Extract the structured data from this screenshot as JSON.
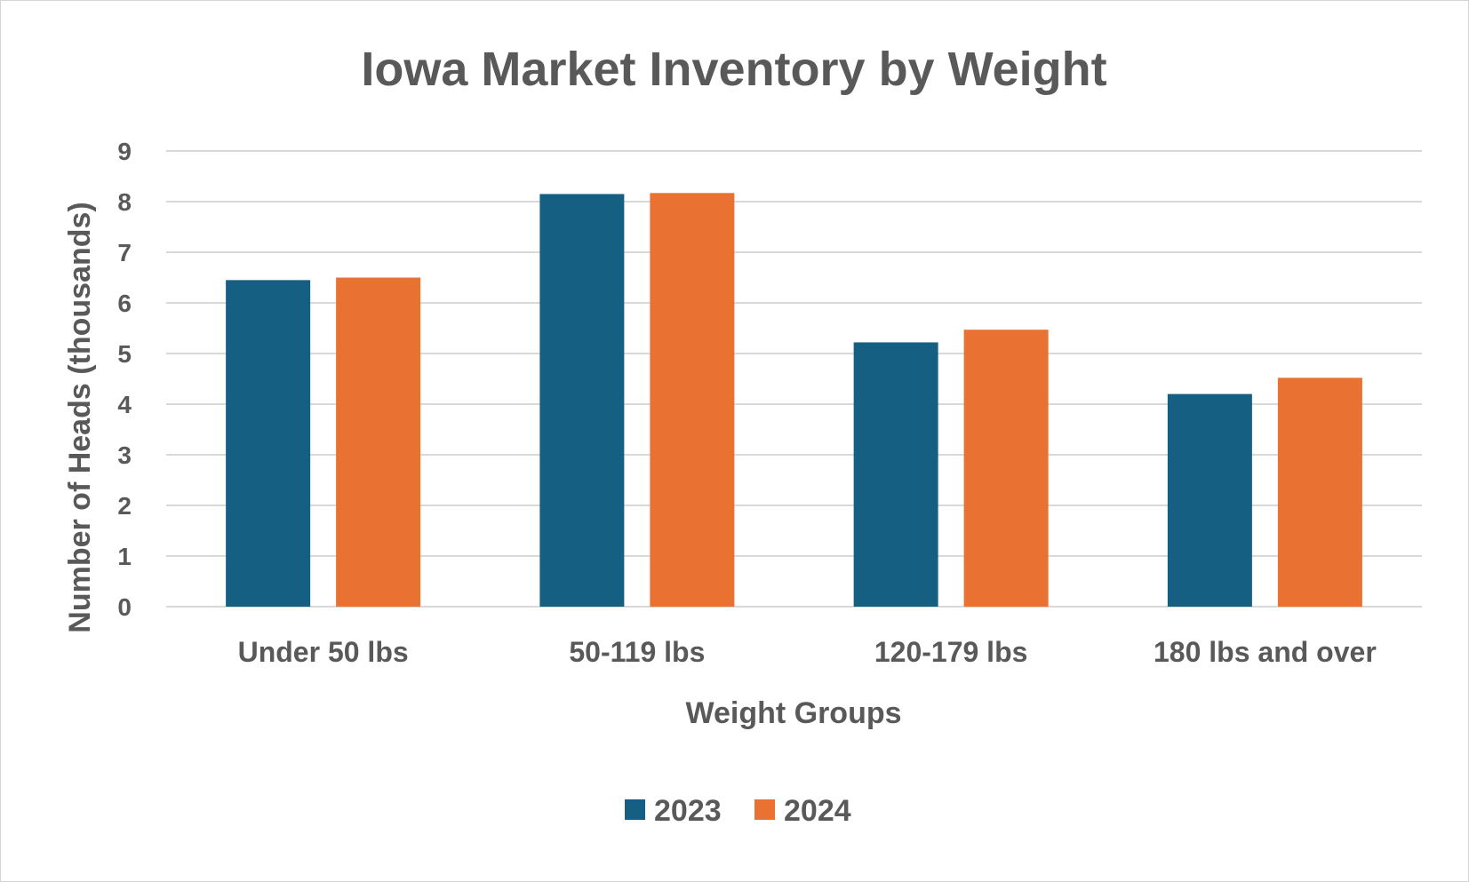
{
  "chart_data": {
    "type": "bar",
    "title": "Iowa Market Inventory by Weight",
    "xlabel": "Weight Groups",
    "ylabel": "Number of Heads (thousands)",
    "ylim": [
      0,
      9
    ],
    "yticks": [
      "0",
      "1",
      "2",
      "3",
      "4",
      "5",
      "6",
      "7",
      "8",
      "9"
    ],
    "grid": true,
    "legend_position": "bottom",
    "categories": [
      "Under 50 lbs",
      "50-119 lbs",
      "120-179 lbs",
      "180 lbs and over"
    ],
    "series": [
      {
        "name": "2023",
        "color": "#156082",
        "values": [
          6.45,
          8.15,
          5.22,
          4.2
        ]
      },
      {
        "name": "2024",
        "color": "#E97132",
        "values": [
          6.5,
          8.17,
          5.47,
          4.52
        ]
      }
    ]
  }
}
